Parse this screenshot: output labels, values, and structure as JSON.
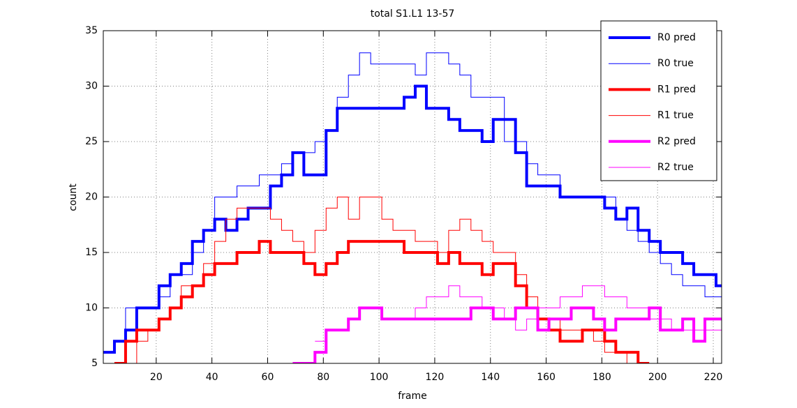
{
  "chart_data": {
    "type": "line",
    "step": true,
    "title": "total S1.L1 13-57",
    "x_label": "frame",
    "y_label": "count",
    "x": [
      1,
      5,
      9,
      13,
      17,
      21,
      25,
      29,
      33,
      37,
      41,
      45,
      49,
      53,
      57,
      61,
      65,
      69,
      73,
      77,
      81,
      85,
      89,
      93,
      97,
      101,
      105,
      109,
      113,
      117,
      121,
      125,
      129,
      133,
      137,
      141,
      145,
      149,
      153,
      157,
      161,
      165,
      169,
      173,
      177,
      181,
      185,
      189,
      193,
      197,
      201,
      205,
      209,
      213,
      217,
      221
    ],
    "xlim": [
      1,
      223
    ],
    "ylim": [
      5,
      35
    ],
    "xticks": [
      20,
      40,
      60,
      80,
      100,
      120,
      140,
      160,
      180,
      200,
      220
    ],
    "yticks": [
      5,
      10,
      15,
      20,
      25,
      30,
      35
    ],
    "grid": true,
    "legend": "upper right",
    "series": [
      {
        "name": "R0 pred",
        "color": "#0000ff",
        "width": 4,
        "values": [
          6,
          7,
          8,
          10,
          10,
          12,
          13,
          14,
          16,
          17,
          18,
          17,
          18,
          19,
          19,
          21,
          22,
          24,
          22,
          22,
          26,
          28,
          28,
          28,
          28,
          28,
          28,
          29,
          30,
          28,
          28,
          27,
          26,
          26,
          25,
          27,
          27,
          24,
          21,
          21,
          21,
          20,
          20,
          20,
          20,
          19,
          18,
          19,
          17,
          16,
          15,
          15,
          14,
          13,
          13,
          12
        ]
      },
      {
        "name": "R0 true",
        "color": "#0000ff",
        "width": 1,
        "values": [
          6,
          7,
          10,
          10,
          10,
          11,
          13,
          13,
          15,
          17,
          20,
          20,
          21,
          21,
          22,
          22,
          23,
          24,
          24,
          25,
          26,
          29,
          31,
          33,
          32,
          32,
          32,
          32,
          31,
          33,
          33,
          32,
          31,
          29,
          29,
          29,
          25,
          25,
          23,
          22,
          22,
          20,
          20,
          20,
          20,
          20,
          18,
          17,
          16,
          15,
          14,
          13,
          12,
          12,
          11,
          11
        ]
      },
      {
        "name": "R1 pred",
        "color": "#ff0000",
        "width": 4,
        "values": [
          null,
          5,
          7,
          8,
          8,
          9,
          10,
          11,
          12,
          13,
          14,
          14,
          15,
          15,
          16,
          15,
          15,
          15,
          14,
          13,
          14,
          15,
          16,
          16,
          16,
          16,
          16,
          15,
          15,
          15,
          14,
          15,
          14,
          14,
          13,
          14,
          14,
          12,
          10,
          9,
          8,
          7,
          7,
          8,
          8,
          7,
          6,
          6,
          5,
          null,
          null,
          null,
          null,
          null,
          null,
          null
        ]
      },
      {
        "name": "R1 true",
        "color": "#ff0000",
        "width": 1,
        "values": [
          null,
          5,
          5,
          7,
          8,
          9,
          10,
          12,
          12,
          14,
          16,
          18,
          19,
          19,
          19,
          18,
          17,
          16,
          15,
          17,
          19,
          20,
          18,
          20,
          20,
          18,
          17,
          17,
          16,
          16,
          15,
          17,
          18,
          17,
          16,
          15,
          15,
          13,
          11,
          9,
          9,
          8,
          8,
          8,
          7,
          6,
          6,
          5,
          5,
          null,
          null,
          null,
          null,
          null,
          null,
          null
        ]
      },
      {
        "name": "R2 pred",
        "color": "#ff00ff",
        "width": 4,
        "values": [
          null,
          null,
          null,
          null,
          null,
          null,
          null,
          null,
          null,
          null,
          null,
          null,
          null,
          null,
          null,
          null,
          null,
          5,
          5,
          6,
          8,
          8,
          9,
          10,
          10,
          9,
          9,
          9,
          9,
          9,
          9,
          9,
          9,
          10,
          10,
          9,
          9,
          10,
          10,
          8,
          9,
          9,
          10,
          10,
          9,
          8,
          9,
          9,
          9,
          10,
          8,
          8,
          9,
          7,
          9,
          9
        ]
      },
      {
        "name": "R2 true",
        "color": "#ff00ff",
        "width": 1,
        "values": [
          null,
          null,
          null,
          null,
          null,
          null,
          null,
          null,
          null,
          null,
          null,
          null,
          null,
          null,
          null,
          null,
          null,
          null,
          null,
          7,
          8,
          8,
          9,
          10,
          10,
          9,
          9,
          9,
          10,
          11,
          11,
          12,
          11,
          11,
          10,
          10,
          9,
          8,
          9,
          10,
          10,
          11,
          11,
          12,
          12,
          11,
          11,
          10,
          10,
          9,
          9,
          8,
          8,
          8,
          8,
          8
        ]
      }
    ]
  }
}
